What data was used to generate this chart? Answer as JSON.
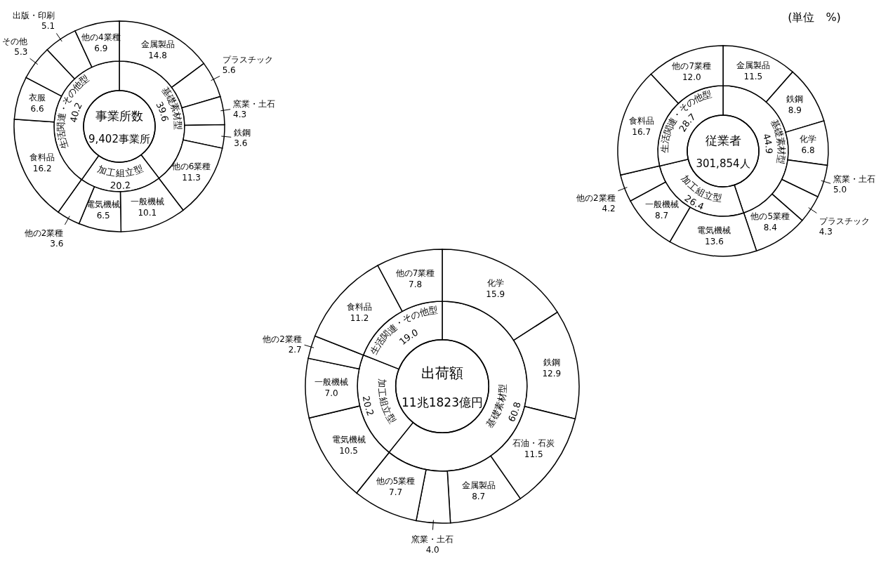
{
  "chart_data": [
    {
      "type": "donut",
      "title": "事業所数",
      "subtitle": "9,402事業所",
      "data_labels": true,
      "categories": [
        "基礎素材型",
        "加工組立型",
        "生活関連・その他型"
      ],
      "values": [
        39.6,
        20.2,
        40.2
      ]
    },
    {
      "type": "donut",
      "data_labels": true,
      "categories": [
        "金属製品",
        "プラスチック",
        "窯業・土石",
        "鉄鋼",
        "他の6業種",
        "一般機械",
        "電気機械",
        "他の2業種",
        "食料品",
        "衣服",
        "その他",
        "出版・印刷",
        "他の4業種"
      ],
      "values": [
        14.8,
        5.6,
        4.3,
        3.6,
        11.3,
        10.1,
        6.5,
        3.6,
        16.2,
        6.6,
        5.3,
        5.1,
        6.9
      ]
    },
    {
      "type": "donut",
      "title": "従業者",
      "subtitle": "301,854人",
      "data_labels": true,
      "categories": [
        "基礎素材型",
        "加工組立型",
        "生活関連・その他型"
      ],
      "values": [
        44.9,
        26.4,
        28.7
      ]
    },
    {
      "type": "donut",
      "value_labels": [
        "11.5",
        "8.9",
        "6.8",
        "5.0",
        "4.3",
        "8.4",
        "13.6",
        "8.7",
        "4.2",
        "16.7",
        "12.0"
      ],
      "annotations": [
        "(単位　%)"
      ],
      "categories": [
        "金属製品",
        "鉄鋼",
        "化学",
        "窯業・土石",
        "プラスチック",
        "他の5業種",
        "電気機械",
        "一般機械",
        "他の2業種",
        "食料品",
        "他の7業種"
      ],
      "values": [
        11.5,
        8.9,
        6.8,
        5.0,
        4.3,
        8.4,
        13.6,
        8.7,
        4.2,
        16.7,
        12.0
      ]
    },
    {
      "type": "donut",
      "title": "出荷額",
      "subtitle": "11兆1823億円",
      "value_labels": [
        "60.8",
        "20.2",
        "19.0"
      ],
      "categories": [
        "基礎素材型",
        "加工組立型",
        "生活関連・その他型"
      ],
      "values": [
        60.8,
        20.2,
        19.0
      ]
    },
    {
      "type": "donut",
      "value_labels": [
        "15.9",
        "12.9",
        "11.5",
        "8.7",
        "4.0",
        "7.7",
        "10.5",
        "7.0",
        "2.7",
        "11.2",
        "7.8"
      ],
      "categories": [
        "化学",
        "鉄鋼",
        "石油・石炭",
        "金属製品",
        "窯業・土石",
        "他の5業種",
        "電気機械",
        "一般機械",
        "他の2業種",
        "食料品",
        "他の7業種"
      ],
      "values": [
        15.9,
        12.9,
        11.5,
        8.7,
        4.0,
        7.7,
        10.5,
        7.0,
        2.7,
        11.2,
        7.8
      ]
    }
  ]
}
